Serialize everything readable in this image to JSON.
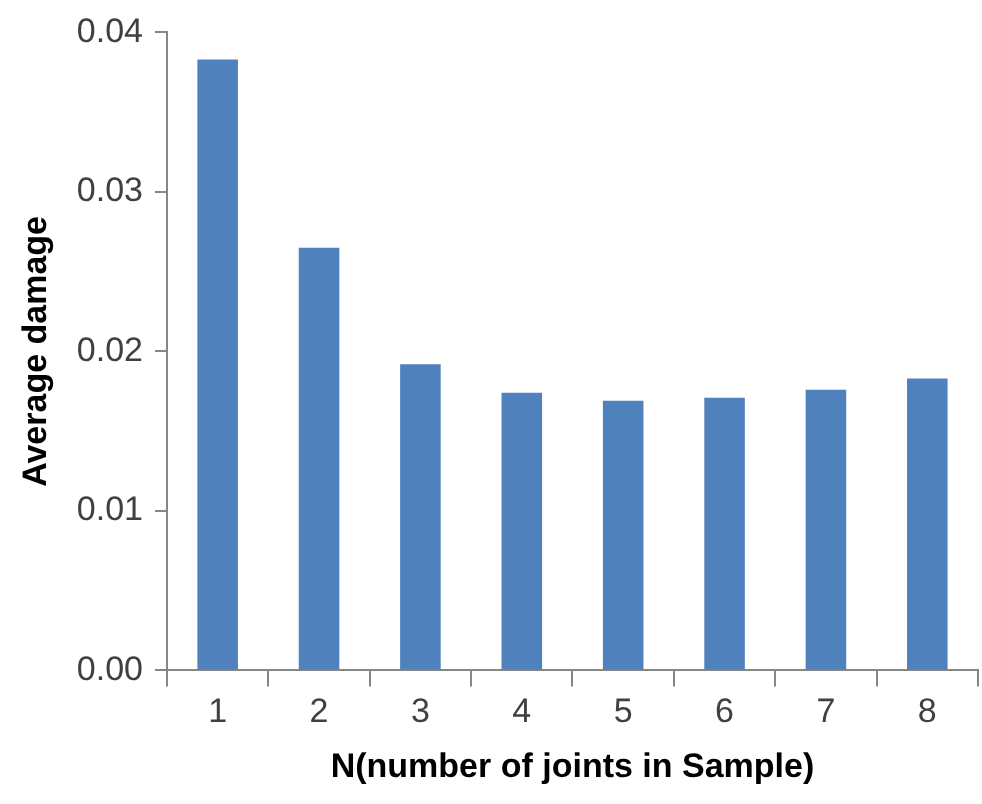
{
  "chart_data": {
    "type": "bar",
    "xlabel": "N(number of joints in Sample)",
    "ylabel": "Average damage",
    "categories": [
      "1",
      "2",
      "3",
      "4",
      "5",
      "6",
      "7",
      "8"
    ],
    "values": [
      0.0383,
      0.0265,
      0.0192,
      0.0174,
      0.0169,
      0.0171,
      0.0176,
      0.0183
    ],
    "color": "#4f81bd",
    "ylim": [
      0,
      0.04
    ],
    "yticks": [
      {
        "value": 0,
        "label": "0.00"
      },
      {
        "value": 0.01,
        "label": "0.01"
      },
      {
        "value": 0.02,
        "label": "0.02"
      },
      {
        "value": 0.03,
        "label": "0.03"
      },
      {
        "value": 0.04,
        "label": "0.04"
      }
    ],
    "grid": false,
    "legend": false
  }
}
